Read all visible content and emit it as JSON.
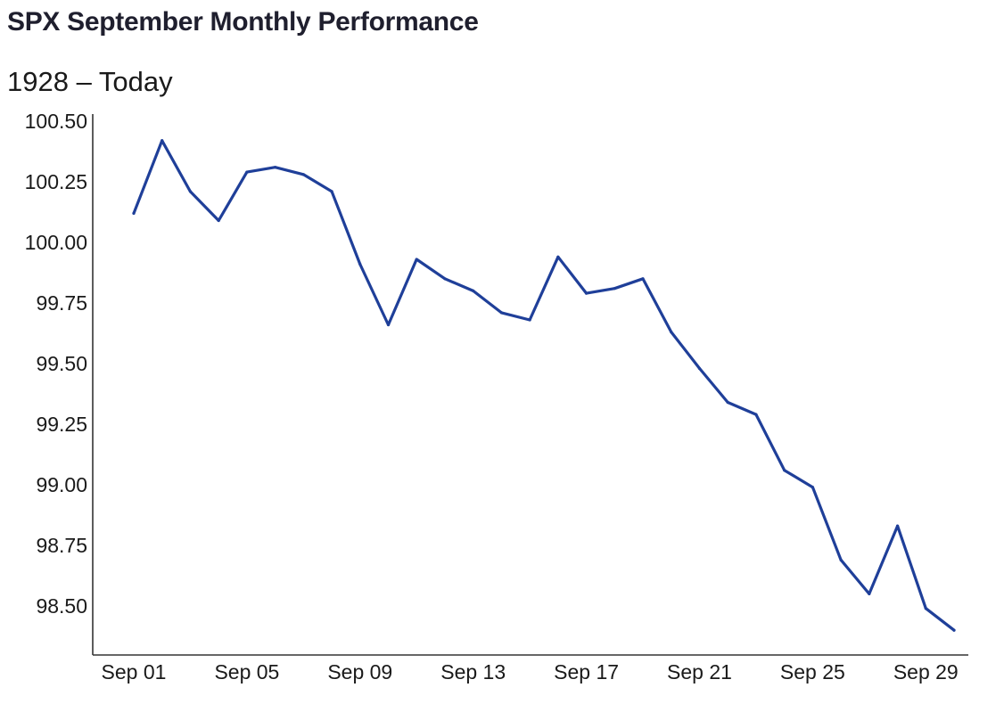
{
  "header": {
    "title": "SPX September Monthly Performance",
    "subtitle": "1928 – Today"
  },
  "chart_data": {
    "type": "line",
    "title": "SPX September Monthly Performance",
    "subtitle": "1928 – Today",
    "xlabel": "",
    "ylabel": "",
    "ylim": [
      98.33,
      100.5
    ],
    "y_ticks": [
      "100.50",
      "100.25",
      "100.00",
      "99.75",
      "99.50",
      "99.25",
      "99.00",
      "98.75",
      "98.50"
    ],
    "y_tick_values": [
      100.5,
      100.25,
      100.0,
      99.75,
      99.5,
      99.25,
      99.0,
      98.75,
      98.5
    ],
    "x_ticks": [
      "Sep 01",
      "Sep 05",
      "Sep 09",
      "Sep 13",
      "Sep 17",
      "Sep 21",
      "Sep 25",
      "Sep 29"
    ],
    "x_tick_days": [
      1,
      5,
      9,
      13,
      17,
      21,
      25,
      29
    ],
    "grid": false,
    "legend": "none",
    "color": "#1f3f99",
    "x": [
      "Sep 01",
      "Sep 02",
      "Sep 03",
      "Sep 04",
      "Sep 05",
      "Sep 06",
      "Sep 07",
      "Sep 08",
      "Sep 09",
      "Sep 10",
      "Sep 11",
      "Sep 12",
      "Sep 13",
      "Sep 14",
      "Sep 15",
      "Sep 16",
      "Sep 17",
      "Sep 18",
      "Sep 19",
      "Sep 20",
      "Sep 21",
      "Sep 22",
      "Sep 23",
      "Sep 24",
      "Sep 25",
      "Sep 26",
      "Sep 27",
      "Sep 28",
      "Sep 29",
      "Sep 30"
    ],
    "series": [
      {
        "values": [
          100.12,
          100.42,
          100.21,
          100.09,
          100.29,
          100.31,
          100.28,
          100.21,
          99.91,
          99.66,
          99.93,
          99.85,
          99.8,
          99.71,
          99.68,
          99.94,
          99.79,
          99.81,
          99.85,
          99.63,
          99.48,
          99.34,
          99.29,
          99.06,
          98.99,
          98.69,
          98.55,
          98.83,
          98.49,
          98.4
        ]
      }
    ]
  }
}
